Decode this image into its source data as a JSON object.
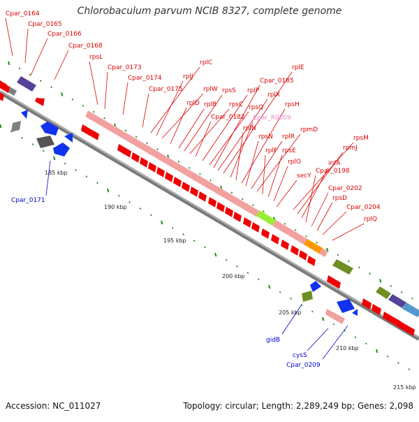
{
  "title": "Chlorobaculum parvum NCIB 8327, complete genome",
  "footer": {
    "accession": "Accession: NC_011027",
    "summary": "Topology: circular; Length: 2,289,249 bp; Genes: 2,098"
  },
  "colors": {
    "forward_label": "#dd0000",
    "reverse_label": "#0000cc",
    "highlight_label": "#ee88cc",
    "backbone": "#8a8a8a",
    "tick": "#228822"
  },
  "scale_labels": [
    "185 kbp",
    "190 kbp",
    "195 kbp",
    "200 kbp",
    "205 kbp",
    "210 kbp",
    "215 kbp"
  ],
  "top_labels": [
    {
      "text": "Cpar_0164",
      "style": "forward"
    },
    {
      "text": "Cpar_0165",
      "style": "forward"
    },
    {
      "text": "Cpar_0166",
      "style": "forward"
    },
    {
      "text": "Cpar_0168",
      "style": "forward"
    },
    {
      "text": "rpsL",
      "style": "forward"
    },
    {
      "text": "Cpar_0173",
      "style": "forward"
    },
    {
      "text": "Cpar_0174",
      "style": "forward"
    },
    {
      "text": "Cpar_0175",
      "style": "forward"
    },
    {
      "text": "rplC",
      "style": "forward"
    },
    {
      "text": "rplJ",
      "style": "forward"
    },
    {
      "text": "rplW",
      "style": "forward"
    },
    {
      "text": "rplD",
      "style": "forward"
    },
    {
      "text": "rplB",
      "style": "forward"
    },
    {
      "text": "rpsS",
      "style": "forward"
    },
    {
      "text": "rpsC",
      "style": "forward"
    },
    {
      "text": "Cpar_0182",
      "style": "forward"
    },
    {
      "text": "rplP",
      "style": "forward"
    },
    {
      "text": "rpsQ",
      "style": "forward"
    },
    {
      "text": "Cpar_0185",
      "style": "forward"
    },
    {
      "text": "rplX",
      "style": "forward"
    },
    {
      "text": "rplE",
      "style": "forward"
    },
    {
      "text": "Cpar_R0009",
      "style": "highlight"
    },
    {
      "text": "rplN",
      "style": "forward"
    },
    {
      "text": "rpsH",
      "style": "forward"
    },
    {
      "text": "rpsN",
      "style": "forward"
    },
    {
      "text": "rplR",
      "style": "forward"
    },
    {
      "text": "rpmD",
      "style": "forward"
    },
    {
      "text": "rplF",
      "style": "forward"
    },
    {
      "text": "rpsE",
      "style": "forward"
    },
    {
      "text": "rplO",
      "style": "forward"
    },
    {
      "text": "rpsM",
      "style": "forward"
    },
    {
      "text": "rpmJ",
      "style": "forward"
    },
    {
      "text": "infA",
      "style": "forward"
    },
    {
      "text": "secY",
      "style": "forward"
    },
    {
      "text": "Cpar_0198",
      "style": "forward"
    },
    {
      "text": "Cpar_0202",
      "style": "forward"
    },
    {
      "text": "rpsD",
      "style": "forward"
    },
    {
      "text": "Cpar_0204",
      "style": "forward"
    },
    {
      "text": "rplQ",
      "style": "forward"
    }
  ],
  "bottom_labels": [
    {
      "text": "Cpar_0171",
      "style": "reverse"
    },
    {
      "text": "gidB",
      "style": "reverse"
    },
    {
      "text": "cysS",
      "style": "reverse"
    },
    {
      "text": "Cpar_0209",
      "style": "reverse"
    }
  ]
}
